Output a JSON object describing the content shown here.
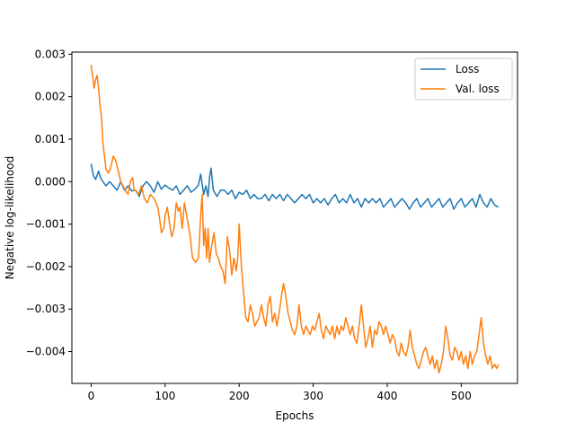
{
  "chart_data": {
    "type": "line",
    "title": "",
    "xlabel": "Epochs",
    "ylabel": "Negative log-likelihood",
    "xlim": [
      -26,
      576
    ],
    "ylim": [
      -0.00475,
      0.00305
    ],
    "xticks": [
      0,
      100,
      200,
      300,
      400,
      500
    ],
    "xtick_labels": [
      "0",
      "100",
      "200",
      "300",
      "400",
      "500"
    ],
    "yticks": [
      0.003,
      0.002,
      0.001,
      0.0,
      -0.001,
      -0.002,
      -0.003,
      -0.004
    ],
    "ytick_labels": [
      "0.003",
      "0.002",
      "0.001",
      "0.000",
      "−0.001",
      "−0.002",
      "−0.003",
      "−0.004"
    ],
    "grid": false,
    "legend_position": "top-right",
    "series": [
      {
        "name": "Loss",
        "color": "#1f77b4",
        "points": [
          [
            0,
            0.00042
          ],
          [
            3,
            0.00015
          ],
          [
            6,
            5e-05
          ],
          [
            10,
            0.00025
          ],
          [
            13,
            8e-05
          ],
          [
            16,
            0.0
          ],
          [
            20,
            -0.0001
          ],
          [
            25,
            0.0
          ],
          [
            30,
            -0.0001
          ],
          [
            35,
            -0.0002
          ],
          [
            40,
            0.0
          ],
          [
            45,
            -0.0002
          ],
          [
            50,
            -0.0001
          ],
          [
            55,
            -0.00022
          ],
          [
            60,
            -0.0002
          ],
          [
            65,
            -0.00035
          ],
          [
            70,
            -0.0001
          ],
          [
            75,
            0.0
          ],
          [
            80,
            -0.0001
          ],
          [
            85,
            -0.00025
          ],
          [
            90,
            0.0
          ],
          [
            95,
            -0.00018
          ],
          [
            100,
            -8e-05
          ],
          [
            105,
            -0.00015
          ],
          [
            110,
            -0.0002
          ],
          [
            115,
            -0.0001
          ],
          [
            120,
            -0.0003
          ],
          [
            125,
            -0.0002
          ],
          [
            130,
            -0.0001
          ],
          [
            135,
            -0.00025
          ],
          [
            140,
            -0.00018
          ],
          [
            145,
            -8e-05
          ],
          [
            148,
            0.00018
          ],
          [
            152,
            -0.0003
          ],
          [
            155,
            -0.0001
          ],
          [
            158,
            -0.00035
          ],
          [
            160,
            0.0001
          ],
          [
            162,
            0.00032
          ],
          [
            165,
            -0.0002
          ],
          [
            170,
            -0.00035
          ],
          [
            175,
            -0.0002
          ],
          [
            180,
            -0.0002
          ],
          [
            185,
            -0.0003
          ],
          [
            190,
            -0.0002
          ],
          [
            195,
            -0.0004
          ],
          [
            200,
            -0.00025
          ],
          [
            205,
            -0.0003
          ],
          [
            210,
            -0.0002
          ],
          [
            215,
            -0.0004
          ],
          [
            220,
            -0.0003
          ],
          [
            225,
            -0.0004
          ],
          [
            230,
            -0.0004
          ],
          [
            235,
            -0.0003
          ],
          [
            240,
            -0.00045
          ],
          [
            245,
            -0.0003
          ],
          [
            250,
            -0.0004
          ],
          [
            255,
            -0.0003
          ],
          [
            260,
            -0.00045
          ],
          [
            265,
            -0.0003
          ],
          [
            270,
            -0.0004
          ],
          [
            275,
            -0.0005
          ],
          [
            280,
            -0.0004
          ],
          [
            285,
            -0.0003
          ],
          [
            290,
            -0.0004
          ],
          [
            295,
            -0.0003
          ],
          [
            300,
            -0.0005
          ],
          [
            305,
            -0.0004
          ],
          [
            310,
            -0.0005
          ],
          [
            315,
            -0.0004
          ],
          [
            320,
            -0.00055
          ],
          [
            325,
            -0.0004
          ],
          [
            330,
            -0.0003
          ],
          [
            335,
            -0.0005
          ],
          [
            340,
            -0.0004
          ],
          [
            345,
            -0.0005
          ],
          [
            350,
            -0.0003
          ],
          [
            355,
            -0.0005
          ],
          [
            360,
            -0.0004
          ],
          [
            365,
            -0.0006
          ],
          [
            370,
            -0.0004
          ],
          [
            375,
            -0.0005
          ],
          [
            380,
            -0.0004
          ],
          [
            385,
            -0.0005
          ],
          [
            390,
            -0.0004
          ],
          [
            395,
            -0.0006
          ],
          [
            400,
            -0.0005
          ],
          [
            405,
            -0.0004
          ],
          [
            410,
            -0.0006
          ],
          [
            415,
            -0.0005
          ],
          [
            420,
            -0.0004
          ],
          [
            425,
            -0.0005
          ],
          [
            430,
            -0.00065
          ],
          [
            435,
            -0.0005
          ],
          [
            440,
            -0.0004
          ],
          [
            445,
            -0.0006
          ],
          [
            450,
            -0.0005
          ],
          [
            455,
            -0.0004
          ],
          [
            460,
            -0.0006
          ],
          [
            465,
            -0.0005
          ],
          [
            470,
            -0.0004
          ],
          [
            475,
            -0.0006
          ],
          [
            480,
            -0.0005
          ],
          [
            485,
            -0.0004
          ],
          [
            490,
            -0.00065
          ],
          [
            495,
            -0.0005
          ],
          [
            500,
            -0.0004
          ],
          [
            505,
            -0.0006
          ],
          [
            510,
            -0.0005
          ],
          [
            515,
            -0.0004
          ],
          [
            520,
            -0.0006
          ],
          [
            525,
            -0.0003
          ],
          [
            530,
            -0.0005
          ],
          [
            535,
            -0.0006
          ],
          [
            540,
            -0.0004
          ],
          [
            545,
            -0.00055
          ],
          [
            550,
            -0.0006
          ]
        ]
      },
      {
        "name": "Val. loss",
        "color": "#ff7f0e",
        "points": [
          [
            0,
            0.00275
          ],
          [
            2,
            0.0025
          ],
          [
            4,
            0.0022
          ],
          [
            6,
            0.0024
          ],
          [
            8,
            0.0025
          ],
          [
            10,
            0.0022
          ],
          [
            12,
            0.0018
          ],
          [
            14,
            0.0015
          ],
          [
            16,
            0.0009
          ],
          [
            18,
            0.0006
          ],
          [
            20,
            0.0003
          ],
          [
            23,
            0.0002
          ],
          [
            26,
            0.0003
          ],
          [
            30,
            0.0006
          ],
          [
            33,
            0.0005
          ],
          [
            36,
            0.0003
          ],
          [
            40,
            0.0
          ],
          [
            43,
            -0.0001
          ],
          [
            46,
            -0.0002
          ],
          [
            50,
            -0.0003
          ],
          [
            53,
            0.0
          ],
          [
            56,
            0.0001
          ],
          [
            58,
            -0.0002
          ],
          [
            60,
            -0.0002
          ],
          [
            64,
            -0.0003
          ],
          [
            68,
            -0.0001
          ],
          [
            72,
            -0.0004
          ],
          [
            76,
            -0.0005
          ],
          [
            80,
            -0.0003
          ],
          [
            85,
            -0.0004
          ],
          [
            90,
            -0.0006
          ],
          [
            92,
            -0.0008
          ],
          [
            95,
            -0.0012
          ],
          [
            98,
            -0.0011
          ],
          [
            100,
            -0.0008
          ],
          [
            103,
            -0.0006
          ],
          [
            106,
            -0.001
          ],
          [
            109,
            -0.0013
          ],
          [
            112,
            -0.0011
          ],
          [
            115,
            -0.0005
          ],
          [
            118,
            -0.0007
          ],
          [
            120,
            -0.0006
          ],
          [
            123,
            -0.0011
          ],
          [
            126,
            -0.0005
          ],
          [
            128,
            -0.0007
          ],
          [
            131,
            -0.001
          ],
          [
            134,
            -0.0013
          ],
          [
            137,
            -0.0018
          ],
          [
            141,
            -0.0019
          ],
          [
            145,
            -0.0018
          ],
          [
            148,
            -0.0008
          ],
          [
            150,
            -0.0003
          ],
          [
            152,
            -0.0015
          ],
          [
            154,
            -0.0011
          ],
          [
            156,
            -0.0018
          ],
          [
            158,
            -0.0011
          ],
          [
            160,
            -0.0019
          ],
          [
            163,
            -0.0015
          ],
          [
            166,
            -0.0012
          ],
          [
            169,
            -0.0017
          ],
          [
            172,
            -0.0018
          ],
          [
            175,
            -0.002
          ],
          [
            178,
            -0.0021
          ],
          [
            181,
            -0.0024
          ],
          [
            184,
            -0.0013
          ],
          [
            187,
            -0.0016
          ],
          [
            190,
            -0.0022
          ],
          [
            193,
            -0.0018
          ],
          [
            196,
            -0.0021
          ],
          [
            198,
            -0.0018
          ],
          [
            200,
            -0.001
          ],
          [
            203,
            -0.002
          ],
          [
            206,
            -0.0026
          ],
          [
            209,
            -0.0032
          ],
          [
            212,
            -0.0033
          ],
          [
            215,
            -0.0029
          ],
          [
            218,
            -0.0031
          ],
          [
            221,
            -0.0034
          ],
          [
            224,
            -0.0033
          ],
          [
            227,
            -0.0032
          ],
          [
            230,
            -0.0029
          ],
          [
            233,
            -0.0032
          ],
          [
            236,
            -0.0034
          ],
          [
            239,
            -0.0029
          ],
          [
            242,
            -0.0027
          ],
          [
            245,
            -0.0033
          ],
          [
            248,
            -0.0031
          ],
          [
            251,
            -0.0034
          ],
          [
            254,
            -0.0031
          ],
          [
            257,
            -0.0027
          ],
          [
            260,
            -0.0024
          ],
          [
            263,
            -0.0027
          ],
          [
            266,
            -0.0031
          ],
          [
            269,
            -0.0033
          ],
          [
            272,
            -0.0035
          ],
          [
            275,
            -0.0036
          ],
          [
            278,
            -0.0034
          ],
          [
            281,
            -0.0029
          ],
          [
            284,
            -0.0034
          ],
          [
            287,
            -0.0036
          ],
          [
            290,
            -0.0034
          ],
          [
            293,
            -0.0035
          ],
          [
            296,
            -0.0036
          ],
          [
            299,
            -0.0034
          ],
          [
            302,
            -0.0035
          ],
          [
            305,
            -0.0033
          ],
          [
            308,
            -0.0031
          ],
          [
            311,
            -0.0035
          ],
          [
            314,
            -0.0037
          ],
          [
            317,
            -0.0034
          ],
          [
            320,
            -0.0035
          ],
          [
            323,
            -0.0036
          ],
          [
            326,
            -0.0034
          ],
          [
            329,
            -0.0037
          ],
          [
            332,
            -0.0034
          ],
          [
            335,
            -0.0036
          ],
          [
            338,
            -0.0034
          ],
          [
            341,
            -0.0035
          ],
          [
            344,
            -0.0032
          ],
          [
            347,
            -0.0034
          ],
          [
            350,
            -0.0036
          ],
          [
            353,
            -0.0034
          ],
          [
            356,
            -0.0037
          ],
          [
            359,
            -0.0038
          ],
          [
            362,
            -0.0034
          ],
          [
            365,
            -0.0029
          ],
          [
            368,
            -0.0034
          ],
          [
            371,
            -0.0039
          ],
          [
            374,
            -0.0037
          ],
          [
            377,
            -0.0034
          ],
          [
            380,
            -0.0039
          ],
          [
            383,
            -0.0035
          ],
          [
            386,
            -0.0036
          ],
          [
            389,
            -0.0033
          ],
          [
            392,
            -0.0034
          ],
          [
            395,
            -0.0036
          ],
          [
            398,
            -0.0034
          ],
          [
            401,
            -0.0036
          ],
          [
            404,
            -0.0038
          ],
          [
            407,
            -0.0036
          ],
          [
            410,
            -0.0037
          ],
          [
            413,
            -0.004
          ],
          [
            416,
            -0.0041
          ],
          [
            419,
            -0.0038
          ],
          [
            422,
            -0.004
          ],
          [
            425,
            -0.0041
          ],
          [
            428,
            -0.0039
          ],
          [
            431,
            -0.0035
          ],
          [
            434,
            -0.0039
          ],
          [
            437,
            -0.0041
          ],
          [
            440,
            -0.0043
          ],
          [
            443,
            -0.0044
          ],
          [
            446,
            -0.0042
          ],
          [
            449,
            -0.004
          ],
          [
            452,
            -0.0039
          ],
          [
            455,
            -0.0041
          ],
          [
            458,
            -0.0043
          ],
          [
            461,
            -0.0041
          ],
          [
            464,
            -0.0044
          ],
          [
            467,
            -0.0042
          ],
          [
            470,
            -0.0045
          ],
          [
            473,
            -0.0043
          ],
          [
            476,
            -0.004
          ],
          [
            479,
            -0.0034
          ],
          [
            482,
            -0.0037
          ],
          [
            485,
            -0.0041
          ],
          [
            488,
            -0.0042
          ],
          [
            491,
            -0.0039
          ],
          [
            494,
            -0.004
          ],
          [
            497,
            -0.0042
          ],
          [
            500,
            -0.004
          ],
          [
            503,
            -0.0043
          ],
          [
            506,
            -0.0041
          ],
          [
            509,
            -0.0044
          ],
          [
            512,
            -0.004
          ],
          [
            515,
            -0.0043
          ],
          [
            518,
            -0.0041
          ],
          [
            521,
            -0.004
          ],
          [
            524,
            -0.0036
          ],
          [
            527,
            -0.0032
          ],
          [
            530,
            -0.0038
          ],
          [
            533,
            -0.0041
          ],
          [
            536,
            -0.0043
          ],
          [
            539,
            -0.0041
          ],
          [
            542,
            -0.0044
          ],
          [
            545,
            -0.0043
          ],
          [
            548,
            -0.0044
          ],
          [
            550,
            -0.0043
          ]
        ]
      }
    ]
  }
}
